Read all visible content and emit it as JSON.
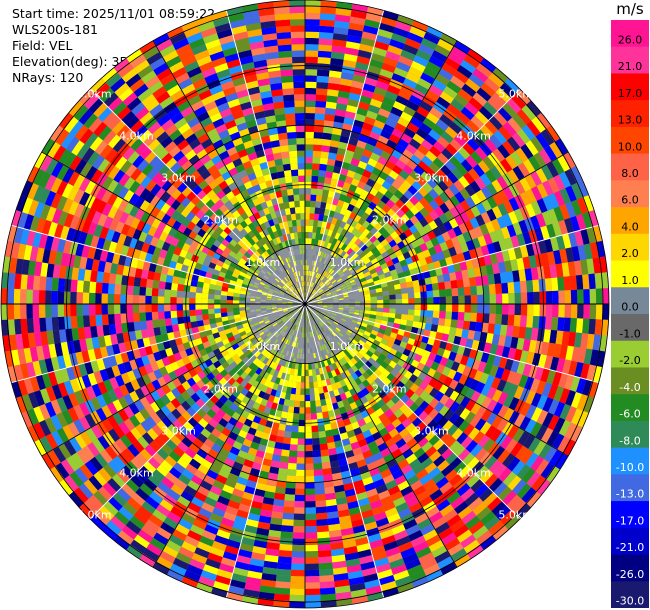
{
  "header": {
    "start_time": "Start time: 2025/11/01 08:59:22",
    "instrument": "WLS200s-181",
    "field": "Field: VEL",
    "elevation": "Elevation(deg): 35.00",
    "nrays": "NRays: 120"
  },
  "colorbar": {
    "unit": "m/s",
    "ticks": [
      "26.0",
      "21.0",
      "17.0",
      "13.0",
      "10.0",
      "8.0",
      "6.0",
      "4.0",
      "2.0",
      "1.0",
      "0.0",
      "-1.0",
      "-2.0",
      "-4.0",
      "-6.0",
      "-8.0",
      "-10.0",
      "-13.0",
      "-17.0",
      "-21.0",
      "-26.0",
      "-30.0"
    ],
    "colors": [
      "#ff1493",
      "#ff3399",
      "#ff0000",
      "#ff2200",
      "#ff4500",
      "#ff6347",
      "#ff7f50",
      "#ffa500",
      "#ffd700",
      "#ffff00",
      "#778899",
      "#696969",
      "#9acd32",
      "#6b8e23",
      "#228b22",
      "#2e8b57",
      "#1e90ff",
      "#4169e1",
      "#0000ff",
      "#0000cd",
      "#000080",
      "#191970"
    ]
  },
  "chart_data": {
    "type": "ppi",
    "field": "VEL",
    "units": "m/s",
    "nrays": 120,
    "elevation_deg": 35.0,
    "range_rings_km": [
      1.0,
      2.0,
      3.0,
      4.0,
      5.0
    ],
    "ring_labels": [
      "1.0km",
      "2.0km",
      "3.0km",
      "4.0km",
      "5.0km"
    ],
    "max_range_km": 5.1,
    "center_region": {
      "inner_km": 1.0,
      "noise_km": 2.5,
      "inner_values_m_s": [
        0.0,
        1.0,
        -1.0,
        -2.0,
        2.0
      ]
    },
    "colormap_range": [
      -30.0,
      26.0
    ]
  }
}
